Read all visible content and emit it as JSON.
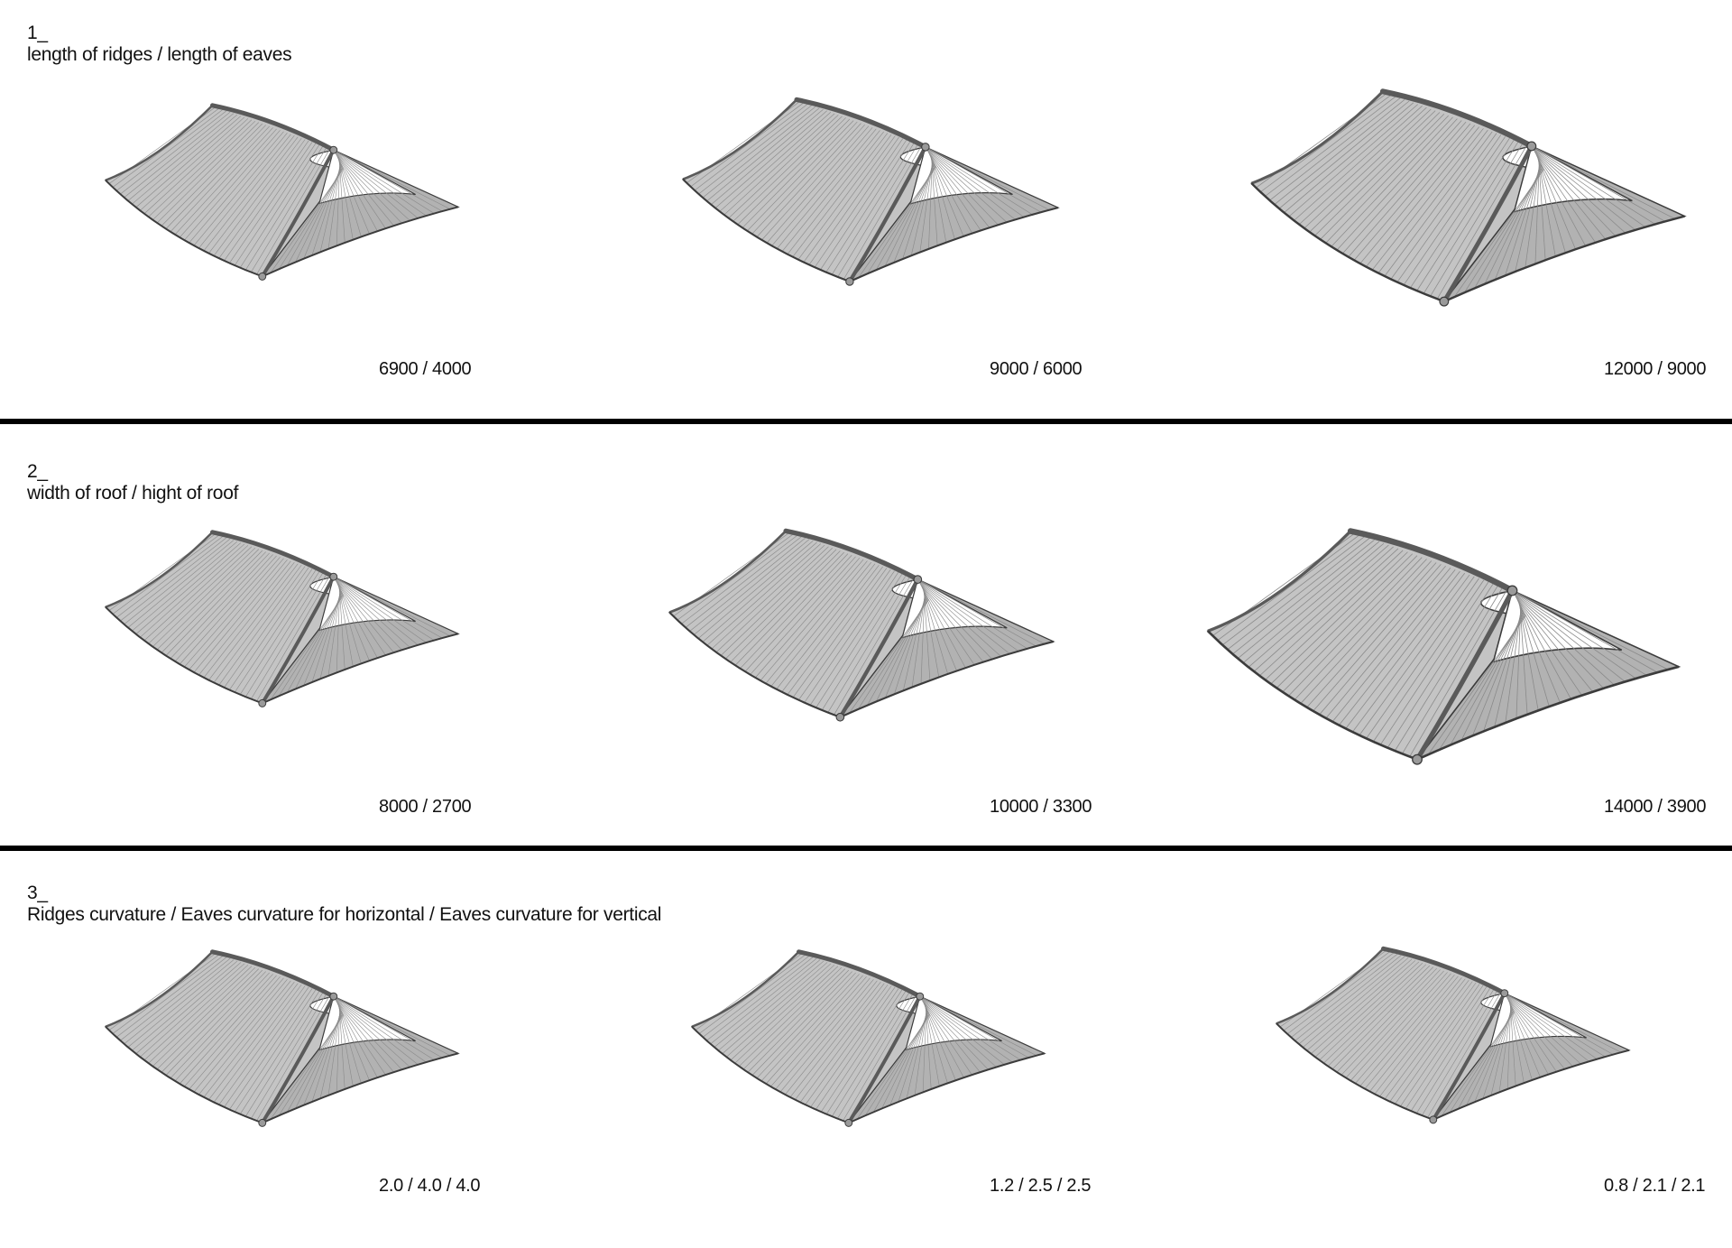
{
  "sections": [
    {
      "number": "1_",
      "title": "length of ridges / length of eaves",
      "captions": [
        "6900 / 4000",
        "9000 / 6000",
        "12000 / 9000"
      ]
    },
    {
      "number": "2_",
      "title": "width of roof / hight of roof",
      "captions": [
        "8000 / 2700",
        "10000 / 3300",
        "14000 / 3900"
      ]
    },
    {
      "number": "3_",
      "title": "Ridges curvature / Eaves curvature for horizontal /  Eaves curvature for vertical",
      "captions": [
        "2.0 / 4.0 / 4.0",
        "1.2 / 2.5 / 2.5",
        "0.8 / 2.1 / 2.1"
      ]
    }
  ],
  "colors": {
    "roof_fill": "#c4c4c4",
    "roof_side": "#b2b2b2",
    "ridge": "#5a5a5a",
    "line": "#3c3c3c",
    "divider": "#000000"
  }
}
